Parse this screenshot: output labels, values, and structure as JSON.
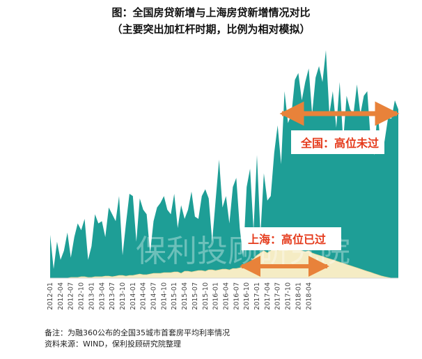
{
  "header": {
    "title": "图：全国房贷新增与上海房贷新增情况对比",
    "subtitle": "（主要突出加杠杆时期，比例为相对模拟）"
  },
  "annotations": {
    "national": "全国：高位未过",
    "shanghai": "上海：高位已过"
  },
  "watermark": "保利投顾研究院",
  "notes": {
    "line1": "备注：为融360公布的全国35城市首套房平均利率情况",
    "line2": "资料来源：WIND，保利投顾研究院整理"
  },
  "colors": {
    "national": "#1e9e96",
    "shanghai": "#f5ecc4",
    "callout": "#e53b1c",
    "arrow": "#e8823a"
  },
  "chart_data": {
    "type": "area",
    "title": "图：全国房贷新增与上海房贷新增情况对比",
    "subtitle": "（主要突出加杠杆时期，比例为相对模拟）",
    "xlabel": "",
    "ylabel": "",
    "ylim": [
      0,
      100
    ],
    "grid": false,
    "legend": "none",
    "x_tick_labels": [
      "2012-01",
      "2012-04",
      "2012-07",
      "2012-10",
      "2013-01",
      "2013-04",
      "2013-07",
      "2013-10",
      "2014-01",
      "2014-04",
      "2014-07",
      "2014-10",
      "2015-01",
      "2015-04",
      "2015-07",
      "2015-10",
      "2016-01",
      "2016-04",
      "2016-07",
      "2016-10",
      "2017-01",
      "2017-04",
      "2017-07",
      "2017-10",
      "2018-01",
      "2018-04"
    ],
    "x_start": "2012-01",
    "series": [
      {
        "key": "national",
        "values": [
          19,
          4,
          16,
          8,
          12,
          20,
          9,
          18,
          24,
          21,
          26,
          8,
          14,
          28,
          24,
          25,
          18,
          31,
          28,
          25,
          36,
          10,
          24,
          37,
          36,
          16,
          35,
          30,
          28,
          11,
          25,
          31,
          33,
          36,
          30,
          28,
          37,
          22,
          32,
          26,
          30,
          38,
          27,
          26,
          36,
          39,
          35,
          16,
          34,
          52,
          31,
          36,
          24,
          40,
          44,
          22,
          9,
          40,
          48,
          21,
          54,
          19,
          46,
          34,
          36,
          55,
          67,
          50,
          82,
          68,
          72,
          87,
          90,
          78,
          86,
          92,
          72,
          88,
          93,
          86,
          100,
          72,
          82,
          66,
          86,
          60,
          80,
          74,
          72,
          85,
          72,
          80,
          82,
          60,
          54,
          74,
          55,
          60,
          70,
          70,
          78,
          74
        ]
      },
      {
        "key": "shanghai",
        "values": [
          0,
          0,
          0,
          0,
          0,
          0,
          0.3,
          0.3,
          0.3,
          0.6,
          0.6,
          0.3,
          0.3,
          0.6,
          0.6,
          0.6,
          0.9,
          0.9,
          0.6,
          0.9,
          1.2,
          1.2,
          0.9,
          1.2,
          1.2,
          1.5,
          1.8,
          1.5,
          1.5,
          1.8,
          2.1,
          2.1,
          2.1,
          2.4,
          2.4,
          2.4,
          2.7,
          2.7,
          2.1,
          3,
          3,
          2.7,
          3,
          3.3,
          3.3,
          3,
          3.6,
          3.6,
          3.3,
          3.6,
          3.9,
          3.9,
          3.6,
          4.2,
          4.2,
          4.5,
          4.8,
          5.5,
          7,
          8.5,
          10,
          11,
          12,
          11,
          12,
          15,
          12,
          13,
          16,
          14,
          15,
          14,
          13,
          12,
          11.5,
          12,
          11,
          10.5,
          10,
          9.5,
          9,
          8.5,
          8,
          7.5,
          7,
          6.5,
          6,
          5.5,
          5,
          4.5,
          4,
          3.5,
          3,
          2.5,
          2,
          1.5,
          1,
          0.6,
          0.3,
          0,
          0,
          0
        ]
      }
    ]
  }
}
